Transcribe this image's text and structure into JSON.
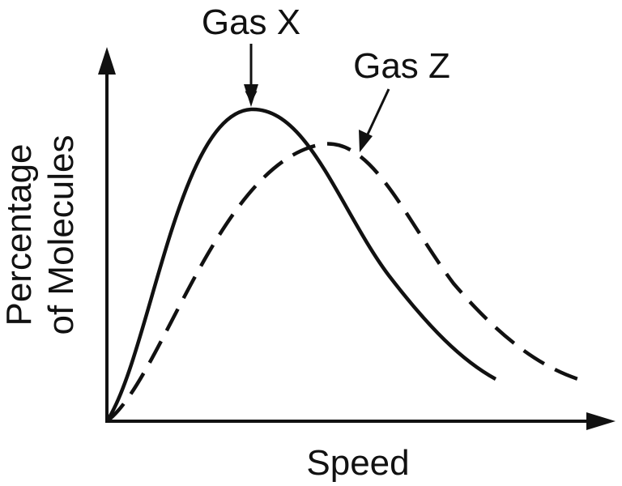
{
  "curves": {
    "gas_x": "Gas X",
    "gas_z": "Gas Z"
  },
  "axes": {
    "y_label": [
      "Percentage",
      "of Molecules"
    ],
    "x_label": "Speed"
  }
}
